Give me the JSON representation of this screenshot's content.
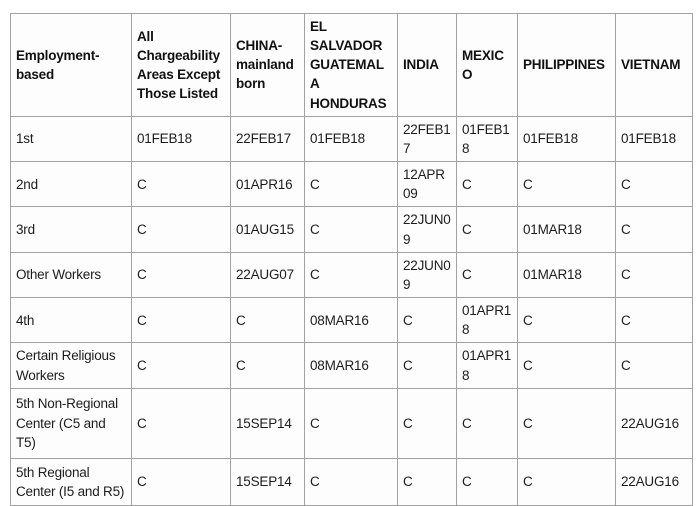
{
  "theme": {
    "page_background": "#ffffff",
    "cell_background": "#fdfdfd",
    "border_color": "#a2a2a2",
    "text_color": "#1d1d1d",
    "header_text_color": "#111111"
  },
  "table": {
    "columns": [
      {
        "label": "Employment-based"
      },
      {
        "label": "All Chargeability Areas Except Those Listed"
      },
      {
        "label": "CHINA-mainland born"
      },
      {
        "label": "EL SALVADOR GUATEMALA HONDURAS"
      },
      {
        "label": "INDIA"
      },
      {
        "label": "MEXICO"
      },
      {
        "label": "PHILIPPINES"
      },
      {
        "label": "VIETNAM"
      }
    ],
    "rows": [
      {
        "category": "1st",
        "values": [
          "01FEB18",
          "22FEB17",
          "01FEB18",
          "22FEB17",
          "01FEB18",
          "01FEB18",
          "01FEB18"
        ]
      },
      {
        "category": "2nd",
        "values": [
          "C",
          "01APR16",
          "C",
          "12APR09",
          "C",
          "C",
          "C"
        ]
      },
      {
        "category": "3rd",
        "values": [
          "C",
          "01AUG15",
          "C",
          "22JUN09",
          "C",
          "01MAR18",
          "C"
        ]
      },
      {
        "category": "Other Workers",
        "values": [
          "C",
          "22AUG07",
          "C",
          "22JUN09",
          "C",
          "01MAR18",
          "C"
        ]
      },
      {
        "category": "4th",
        "values": [
          "C",
          "C",
          "08MAR16",
          "C",
          "01APR18",
          "C",
          "C"
        ]
      },
      {
        "category": "Certain Religious Workers",
        "values": [
          "C",
          "C",
          "08MAR16",
          "C",
          "01APR18",
          "C",
          "C"
        ]
      },
      {
        "category": "5th Non-Regional Center (C5 and T5)",
        "values": [
          "C",
          "15SEP14",
          "C",
          "C",
          "C",
          "C",
          "22AUG16"
        ]
      },
      {
        "category": "5th Regional Center (I5 and R5)",
        "values": [
          "C",
          "15SEP14",
          "C",
          "C",
          "C",
          "C",
          "22AUG16"
        ]
      }
    ]
  }
}
